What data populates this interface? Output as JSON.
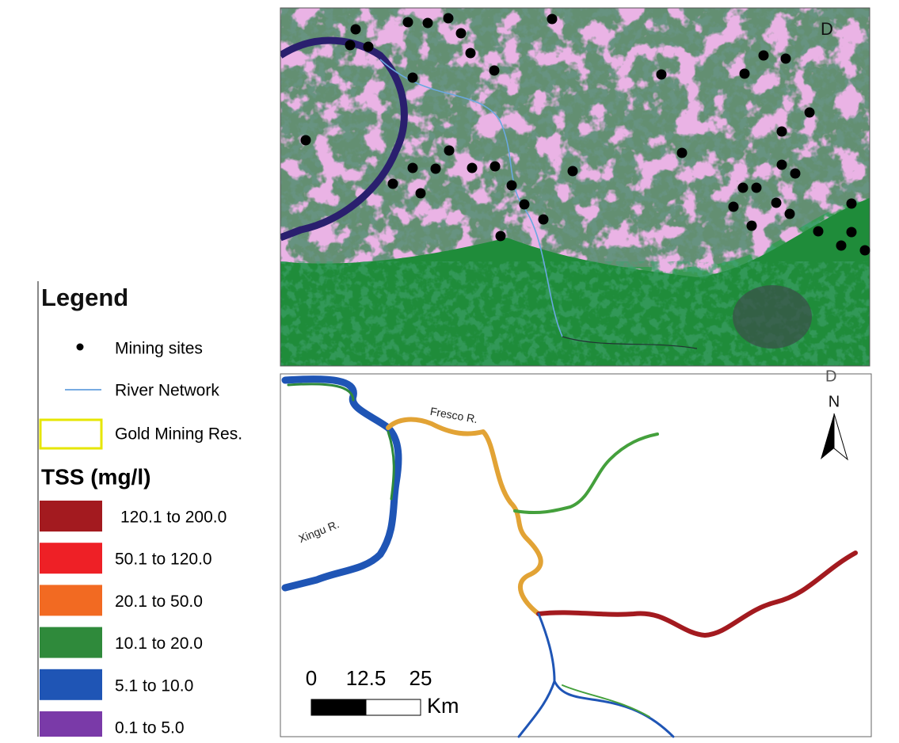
{
  "panel_top": {
    "label": "D"
  },
  "panel_bottom": {
    "label": "D",
    "north": "N",
    "rivers": [
      "Fresco R.",
      "Xingu R."
    ],
    "scale_bar": {
      "ticks": [
        0,
        12.5,
        25
      ],
      "unit": "Km"
    }
  },
  "legend": {
    "title": "Legend",
    "items": [
      {
        "label": "Mining sites",
        "color": "#000000"
      },
      {
        "label": "River Network",
        "color": "#4a8fd8"
      },
      {
        "label": "Gold Mining Res.",
        "color": "#e6e600"
      }
    ],
    "tss_title": "TSS (mg/l)",
    "classes": [
      {
        "label": "120.1 to 200.0",
        "color": "#a31a1f"
      },
      {
        "label": "50.1 to 120.0",
        "color": "#ee2026"
      },
      {
        "label": "20.1 to 50.0",
        "color": "#f26a22"
      },
      {
        "label": "10.1 to 20.0",
        "color": "#2f8a3b"
      },
      {
        "label": "5.1 to 10.0",
        "color": "#1f55b5"
      },
      {
        "label": "0.1 to 5.0",
        "color": "#7a3aa8"
      }
    ]
  }
}
